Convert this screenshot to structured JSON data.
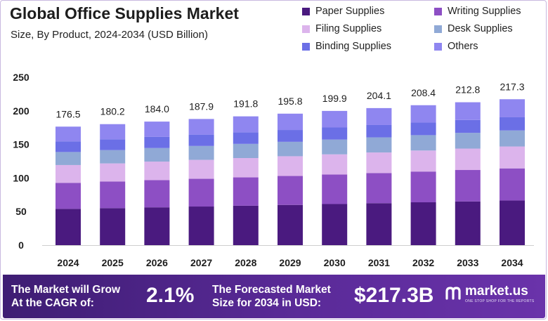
{
  "title": "Global Office Supplies Market",
  "subtitle": "Size, By Product, 2024-2034 (USD Billion)",
  "colors": {
    "paper": "#4a1a7f",
    "writing": "#8d4fc4",
    "filing": "#dcb4ec",
    "desk": "#90a9d6",
    "binding": "#6b6fe6",
    "others": "#8f86f0"
  },
  "legend": [
    {
      "label": "Paper Supplies",
      "color": "#4a1a7f"
    },
    {
      "label": "Writing Supplies",
      "color": "#8d4fc4"
    },
    {
      "label": "Filing Supplies",
      "color": "#dcb4ec"
    },
    {
      "label": "Desk Supplies",
      "color": "#90a9d6"
    },
    {
      "label": "Binding Supplies",
      "color": "#6b6fe6"
    },
    {
      "label": "Others",
      "color": "#8f86f0"
    }
  ],
  "chart_data": {
    "type": "bar",
    "stacked": true,
    "title": "Global Office Supplies Market",
    "subtitle": "Size, By Product, 2024-2034 (USD Billion)",
    "categories": [
      "2024",
      "2025",
      "2026",
      "2027",
      "2028",
      "2029",
      "2030",
      "2031",
      "2032",
      "2033",
      "2034"
    ],
    "totals": [
      "176.5",
      "180.2",
      "184.0",
      "187.9",
      "191.8",
      "195.8",
      "199.9",
      "204.1",
      "208.4",
      "212.8",
      "217.3"
    ],
    "series": [
      {
        "name": "Paper Supplies",
        "values": [
          54.0,
          55.1,
          56.3,
          57.5,
          58.7,
          59.9,
          61.2,
          62.5,
          63.8,
          65.1,
          66.5
        ]
      },
      {
        "name": "Writing Supplies",
        "values": [
          38.8,
          39.6,
          40.5,
          41.3,
          42.2,
          43.1,
          44.0,
          44.9,
          45.8,
          46.8,
          47.8
        ]
      },
      {
        "name": "Filing Supplies",
        "values": [
          26.5,
          27.0,
          27.6,
          28.2,
          28.8,
          29.4,
          30.0,
          30.6,
          31.3,
          31.9,
          32.6
        ]
      },
      {
        "name": "Desk Supplies",
        "values": [
          19.4,
          19.8,
          20.2,
          20.7,
          21.1,
          21.5,
          22.0,
          22.5,
          22.9,
          23.4,
          23.9
        ]
      },
      {
        "name": "Binding Supplies",
        "values": [
          15.9,
          16.2,
          16.6,
          16.9,
          17.3,
          17.6,
          18.0,
          18.4,
          18.8,
          19.2,
          19.6
        ]
      },
      {
        "name": "Others",
        "values": [
          21.9,
          22.5,
          22.8,
          23.3,
          23.7,
          24.3,
          24.7,
          25.2,
          25.8,
          26.4,
          26.9
        ]
      }
    ],
    "yticks": [
      "0",
      "50",
      "100",
      "150",
      "200",
      "250"
    ],
    "ylim": [
      0,
      250
    ],
    "grid": false,
    "legend_position": "top-right"
  },
  "footer": {
    "cagr_text_line1": "The Market will Grow",
    "cagr_text_line2": "At the CAGR of:",
    "cagr_value": "2.1%",
    "forecast_text_line1": "The Forecasted Market",
    "forecast_text_line2": "Size for 2034 in USD:",
    "forecast_value": "$217.3B",
    "logo_text": "market.us",
    "logo_tagline": "ONE STOP SHOP FOR THE REPORTS"
  }
}
